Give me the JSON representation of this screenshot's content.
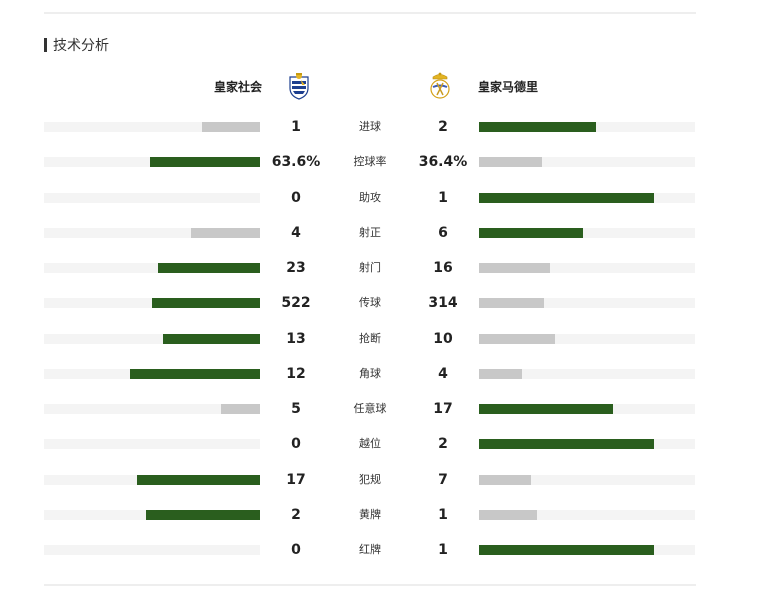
{
  "section": {
    "title": "技术分析"
  },
  "teams": {
    "home": {
      "name": "皇家社会",
      "logo_icon": "real-sociedad-crest-icon"
    },
    "away": {
      "name": "皇家马德里",
      "logo_icon": "real-madrid-crest-icon"
    }
  },
  "colors": {
    "leading": "#2a5e1e",
    "trailing": "#c8c8c8",
    "track": "#f4f4f4"
  },
  "stats": [
    {
      "label": "进球",
      "home": "1",
      "away": "2",
      "home_ratio": 0.27,
      "away_ratio": 0.54,
      "leader": "away"
    },
    {
      "label": "控球率",
      "home": "63.6%",
      "away": "36.4%",
      "home_ratio": 0.51,
      "away_ratio": 0.29,
      "leader": "home"
    },
    {
      "label": "助攻",
      "home": "0",
      "away": "1",
      "home_ratio": 0.0,
      "away_ratio": 0.81,
      "leader": "away"
    },
    {
      "label": "射正",
      "home": "4",
      "away": "6",
      "home_ratio": 0.32,
      "away_ratio": 0.48,
      "leader": "away"
    },
    {
      "label": "射门",
      "home": "23",
      "away": "16",
      "home_ratio": 0.47,
      "away_ratio": 0.33,
      "leader": "home"
    },
    {
      "label": "传球",
      "home": "522",
      "away": "314",
      "home_ratio": 0.5,
      "away_ratio": 0.3,
      "leader": "home"
    },
    {
      "label": "抢断",
      "home": "13",
      "away": "10",
      "home_ratio": 0.45,
      "away_ratio": 0.35,
      "leader": "home"
    },
    {
      "label": "角球",
      "home": "12",
      "away": "4",
      "home_ratio": 0.6,
      "away_ratio": 0.2,
      "leader": "home"
    },
    {
      "label": "任意球",
      "home": "5",
      "away": "17",
      "home_ratio": 0.18,
      "away_ratio": 0.62,
      "leader": "away"
    },
    {
      "label": "越位",
      "home": "0",
      "away": "2",
      "home_ratio": 0.0,
      "away_ratio": 0.81,
      "leader": "away"
    },
    {
      "label": "犯规",
      "home": "17",
      "away": "7",
      "home_ratio": 0.57,
      "away_ratio": 0.24,
      "leader": "home"
    },
    {
      "label": "黄牌",
      "home": "2",
      "away": "1",
      "home_ratio": 0.53,
      "away_ratio": 0.27,
      "leader": "home"
    },
    {
      "label": "红牌",
      "home": "0",
      "away": "1",
      "home_ratio": 0.0,
      "away_ratio": 0.81,
      "leader": "away"
    }
  ]
}
